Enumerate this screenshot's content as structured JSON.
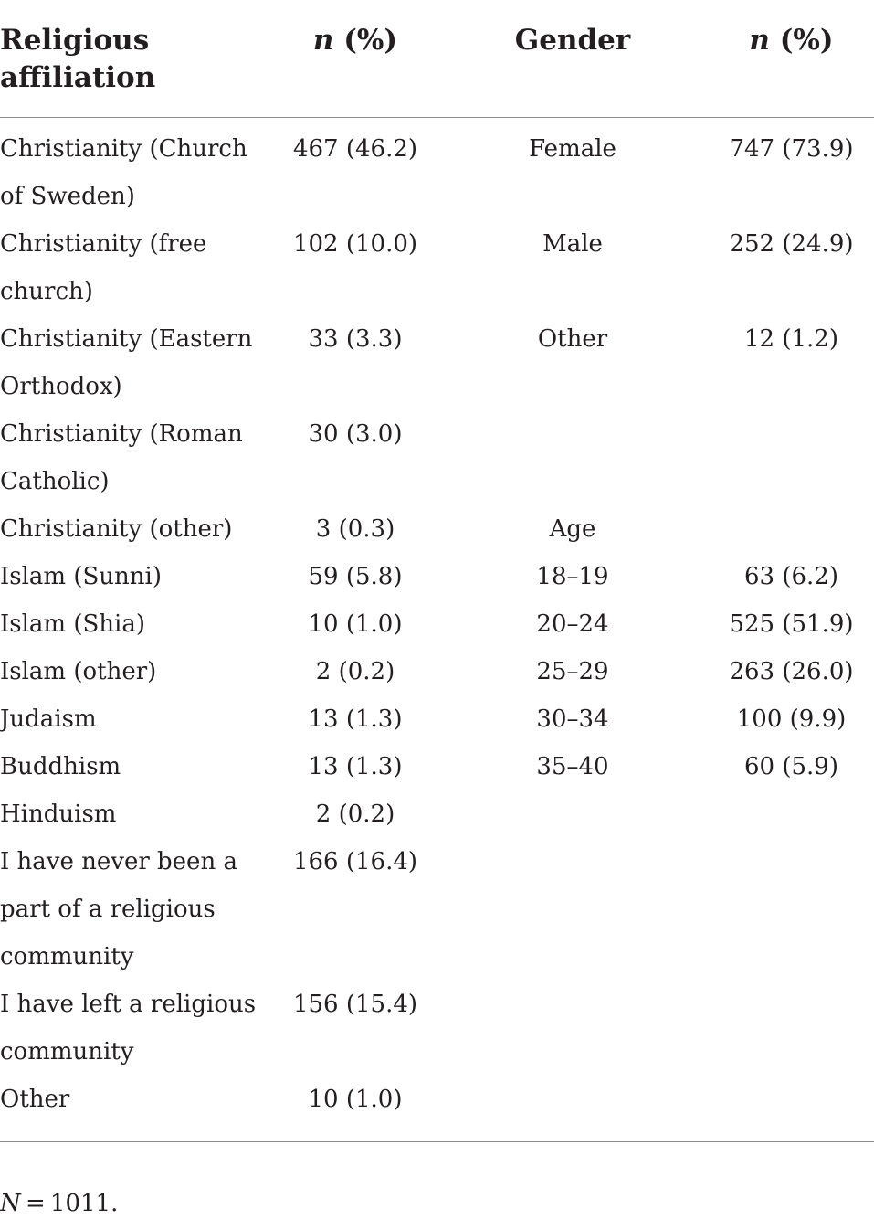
{
  "headers": {
    "religion": "Religious affiliation",
    "n_religion_italic": "n",
    "n_religion_rest": " (%)",
    "gender": "Gender",
    "n_gender_italic": "n",
    "n_gender_rest": " (%)"
  },
  "rows": [
    {
      "religion": "Christianity (Church of Sweden)",
      "religion_n": "467 (46.2)",
      "gender": "Female",
      "gender_n": "747 (73.9)"
    },
    {
      "religion": "Christianity (free church)",
      "religion_n": "102 (10.0)",
      "gender": "Male",
      "gender_n": "252 (24.9)"
    },
    {
      "religion": "Christianity (Eastern Orthodox)",
      "religion_n": "33 (3.3)",
      "gender": "Other",
      "gender_n": "12 (1.2)"
    },
    {
      "religion": "Christianity (Roman Catholic)",
      "religion_n": "30 (3.0)",
      "gender": "",
      "gender_n": ""
    },
    {
      "religion": "Christianity (other)",
      "religion_n": "3 (0.3)",
      "gender": "Age",
      "gender_n": ""
    },
    {
      "religion": "Islam (Sunni)",
      "religion_n": "59 (5.8)",
      "gender": "18–19",
      "gender_n": "63 (6.2)"
    },
    {
      "religion": "Islam (Shia)",
      "religion_n": "10 (1.0)",
      "gender": "20–24",
      "gender_n": "525 (51.9)"
    },
    {
      "religion": "Islam (other)",
      "religion_n": "2 (0.2)",
      "gender": "25–29",
      "gender_n": "263 (26.0)"
    },
    {
      "religion": "Judaism",
      "religion_n": "13 (1.3)",
      "gender": "30–34",
      "gender_n": "100 (9.9)"
    },
    {
      "religion": "Buddhism",
      "religion_n": "13 (1.3)",
      "gender": "35–40",
      "gender_n": "60 (5.9)"
    },
    {
      "religion": "Hinduism",
      "religion_n": "2 (0.2)",
      "gender": "",
      "gender_n": ""
    },
    {
      "religion": "I have never been a part of a religious community",
      "religion_n": "166 (16.4)",
      "gender": "",
      "gender_n": ""
    },
    {
      "religion": "I have left a religious community",
      "religion_n": "156 (15.4)",
      "gender": "",
      "gender_n": ""
    },
    {
      "religion": "Other",
      "religion_n": "10 (1.0)",
      "gender": "",
      "gender_n": ""
    }
  ],
  "footnote": {
    "italic": "N",
    "rest": " = 1011."
  }
}
